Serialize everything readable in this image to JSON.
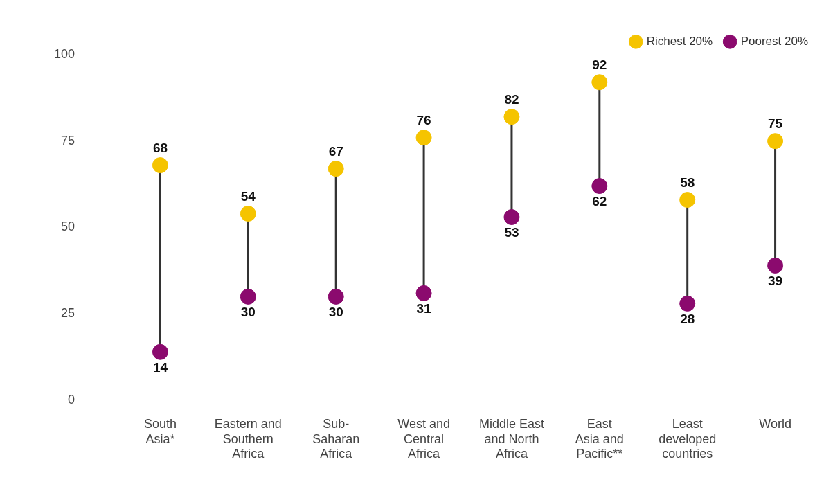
{
  "chart_data": {
    "type": "scatter",
    "categories": [
      "South\nAsia*",
      "Eastern and\nSouthern\nAfrica",
      "Sub-\nSaharan\nAfrica",
      "West and\nCentral\nAfrica",
      "Middle East\nand North\nAfrica",
      "East\nAsia and\nPacific**",
      "Least\ndeveloped\ncountries",
      "World"
    ],
    "series": [
      {
        "name": "Richest 20%",
        "color": "#f5c400",
        "values": [
          68,
          54,
          67,
          76,
          82,
          92,
          58,
          75
        ]
      },
      {
        "name": "Poorest 20%",
        "color": "#8b0a6e",
        "values": [
          14,
          30,
          30,
          31,
          53,
          62,
          28,
          39
        ]
      }
    ],
    "ylim": [
      0,
      100
    ],
    "yticks": [
      0,
      25,
      50,
      75,
      100
    ],
    "grid": false,
    "legend": "top right",
    "marker": "circle",
    "data_labels": true
  }
}
